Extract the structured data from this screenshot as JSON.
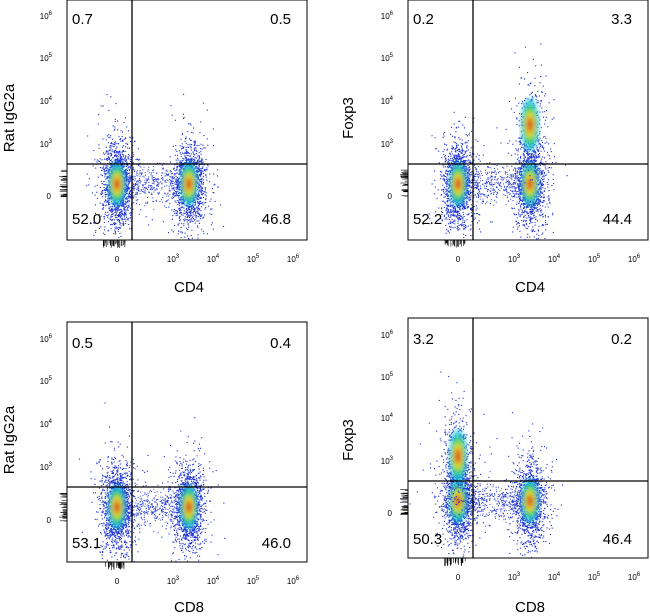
{
  "chart_data": [
    {
      "type": "scatter",
      "xlabel": "CD4",
      "ylabel": "Rat IgG2a",
      "xticks": [
        "0",
        "10",
        "10",
        "10",
        "10"
      ],
      "xexp": [
        "",
        "3",
        "4",
        "5",
        "6"
      ],
      "yticks": [
        "0",
        "10",
        "10",
        "10",
        "10"
      ],
      "yexp": [
        "",
        "3",
        "4",
        "5",
        "6"
      ],
      "quadrants": {
        "ul": "0.7",
        "ur": "0.5",
        "ll": "52.0",
        "lr": "46.8"
      },
      "populations": [
        {
          "x": 0,
          "y": 0,
          "n": 1500
        },
        {
          "x": 2500,
          "y": 0,
          "n": 1400
        }
      ]
    },
    {
      "type": "scatter",
      "xlabel": "CD4",
      "ylabel": "Foxp3",
      "xticks": [
        "0",
        "10",
        "10",
        "10",
        "10"
      ],
      "xexp": [
        "",
        "3",
        "4",
        "5",
        "6"
      ],
      "yticks": [
        "0",
        "10",
        "10",
        "10",
        "10"
      ],
      "yexp": [
        "",
        "3",
        "4",
        "5",
        "6"
      ],
      "quadrants": {
        "ul": "0.2",
        "ur": "3.3",
        "ll": "52.2",
        "lr": "44.4"
      },
      "populations": [
        {
          "x": 0,
          "y": 0,
          "n": 1400
        },
        {
          "x": 2500,
          "y": 0,
          "n": 1300
        },
        {
          "x": 2500,
          "y": 1200,
          "n": 300
        }
      ]
    },
    {
      "type": "scatter",
      "xlabel": "CD8",
      "ylabel": "Rat IgG2a",
      "xticks": [
        "0",
        "10",
        "10",
        "10",
        "10"
      ],
      "xexp": [
        "",
        "3",
        "4",
        "5",
        "6"
      ],
      "yticks": [
        "0",
        "10",
        "10",
        "10",
        "10"
      ],
      "yexp": [
        "",
        "3",
        "4",
        "5",
        "6"
      ],
      "quadrants": {
        "ul": "0.5",
        "ur": "0.4",
        "ll": "53.1",
        "lr": "46.0"
      },
      "populations": [
        {
          "x": 0,
          "y": 0,
          "n": 1600
        },
        {
          "x": 2500,
          "y": 0,
          "n": 1400
        }
      ]
    },
    {
      "type": "scatter",
      "xlabel": "CD8",
      "ylabel": "Foxp3",
      "xticks": [
        "0",
        "10",
        "10",
        "10",
        "10"
      ],
      "xexp": [
        "",
        "3",
        "4",
        "5",
        "6"
      ],
      "yticks": [
        "0",
        "10",
        "10",
        "10",
        "10"
      ],
      "yexp": [
        "",
        "3",
        "4",
        "5",
        "6"
      ],
      "quadrants": {
        "ul": "3.2",
        "ur": "0.2",
        "ll": "50.3",
        "lr": "46.4"
      },
      "populations": [
        {
          "x": 0,
          "y": 0,
          "n": 1400
        },
        {
          "x": 2500,
          "y": 0,
          "n": 1300
        },
        {
          "x": 0,
          "y": 800,
          "n": 400
        }
      ]
    }
  ]
}
